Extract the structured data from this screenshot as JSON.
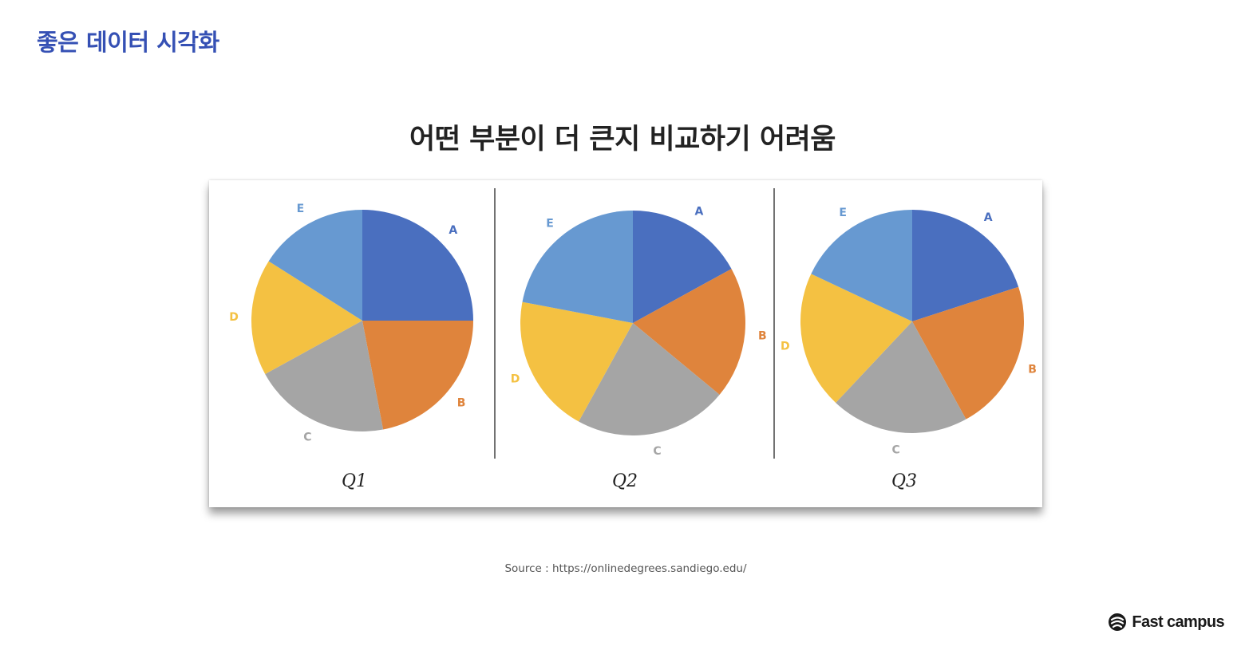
{
  "header": {
    "title": "좋은 데이터 시각화"
  },
  "slide": {
    "headline": "어떤 부분이 더 큰지 비교하기 어려움",
    "source": "Source : https://onlinedegrees.sandiego.edu/"
  },
  "brand": {
    "name": "Fast campus",
    "logo_icon": "fastcampus-logo-icon"
  },
  "colors": {
    "A": "#4a6fbf",
    "B": "#df843c",
    "C": "#a5a5a5",
    "D": "#f4c142",
    "E": "#6799d1",
    "header": "#3550b4"
  },
  "chart_data": [
    {
      "type": "pie",
      "title": "Q1",
      "categories": [
        "A",
        "B",
        "C",
        "D",
        "E"
      ],
      "values": [
        25,
        22,
        20,
        17,
        16
      ]
    },
    {
      "type": "pie",
      "title": "Q2",
      "categories": [
        "A",
        "B",
        "C",
        "D",
        "E"
      ],
      "values": [
        17,
        19,
        22,
        20,
        22
      ]
    },
    {
      "type": "pie",
      "title": "Q3",
      "categories": [
        "A",
        "B",
        "C",
        "D",
        "E"
      ],
      "values": [
        20,
        22,
        20,
        20,
        18
      ]
    }
  ]
}
